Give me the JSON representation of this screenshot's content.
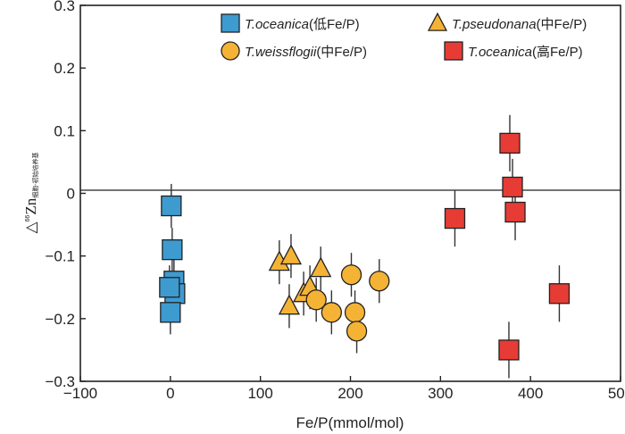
{
  "chart_data": {
    "type": "scatter",
    "title": "",
    "xlabel": "Fe/P(mmol/mol)",
    "ylabel": {
      "prefix": "△",
      "sup": "66",
      "main": "Zn",
      "sub": "细胞-初始培养基"
    },
    "xlim": [
      -100,
      500
    ],
    "ylim": [
      -0.3,
      0.3
    ],
    "xticks": [
      -100,
      0,
      100,
      200,
      300,
      400,
      500
    ],
    "yticks": [
      -0.3,
      -0.2,
      -0.1,
      0,
      0.1,
      0.2,
      0.3
    ],
    "xtick_labels": [
      "−100",
      "0",
      "100",
      "200",
      "300",
      "400",
      "500"
    ],
    "ytick_labels": [
      "−0.3",
      "−0.2",
      "−0.1",
      "0",
      "0.1",
      "0.2",
      "0.3"
    ],
    "reference_line_y": 0,
    "grid": false,
    "legend_placement": "top",
    "series": [
      {
        "name": "T.oceanica(低Fe/P)",
        "marker": "square",
        "color": "#3d9bd0",
        "points": [
          {
            "x": 1,
            "y": -0.02,
            "err": 0.035
          },
          {
            "x": 2,
            "y": -0.09,
            "err": 0.035
          },
          {
            "x": 4,
            "y": -0.14,
            "err": 0.035
          },
          {
            "x": 5,
            "y": -0.16,
            "err": 0.035
          },
          {
            "x": -1,
            "y": -0.15,
            "err": 0.035
          },
          {
            "x": 0,
            "y": -0.19,
            "err": 0.035
          }
        ]
      },
      {
        "name": "T.pseudonana(中Fe/P)",
        "marker": "triangle",
        "color": "#f5b335",
        "points": [
          {
            "x": 121,
            "y": -0.11,
            "err": 0.035
          },
          {
            "x": 134,
            "y": -0.1,
            "err": 0.035
          },
          {
            "x": 132,
            "y": -0.18,
            "err": 0.035
          },
          {
            "x": 148,
            "y": -0.16,
            "err": 0.035
          },
          {
            "x": 155,
            "y": -0.15,
            "err": 0.035
          },
          {
            "x": 167,
            "y": -0.12,
            "err": 0.035
          }
        ]
      },
      {
        "name": "T.weissflogii(中Fe/P)",
        "marker": "circle",
        "color": "#f5b335",
        "points": [
          {
            "x": 162,
            "y": -0.17,
            "err": 0.035
          },
          {
            "x": 179,
            "y": -0.19,
            "err": 0.035
          },
          {
            "x": 201,
            "y": -0.13,
            "err": 0.035
          },
          {
            "x": 205,
            "y": -0.19,
            "err": 0.035
          },
          {
            "x": 207,
            "y": -0.22,
            "err": 0.035
          },
          {
            "x": 232,
            "y": -0.14,
            "err": 0.035
          }
        ]
      },
      {
        "name": "T.oceanica(高Fe/P)",
        "marker": "square",
        "color": "#e63c35",
        "points": [
          {
            "x": 316,
            "y": -0.04,
            "err": 0.045
          },
          {
            "x": 377,
            "y": 0.08,
            "err": 0.045
          },
          {
            "x": 380,
            "y": 0.01,
            "err": 0.045
          },
          {
            "x": 383,
            "y": -0.03,
            "err": 0.045
          },
          {
            "x": 376,
            "y": -0.25,
            "err": 0.045
          },
          {
            "x": 432,
            "y": -0.16,
            "err": 0.045
          }
        ]
      }
    ]
  }
}
